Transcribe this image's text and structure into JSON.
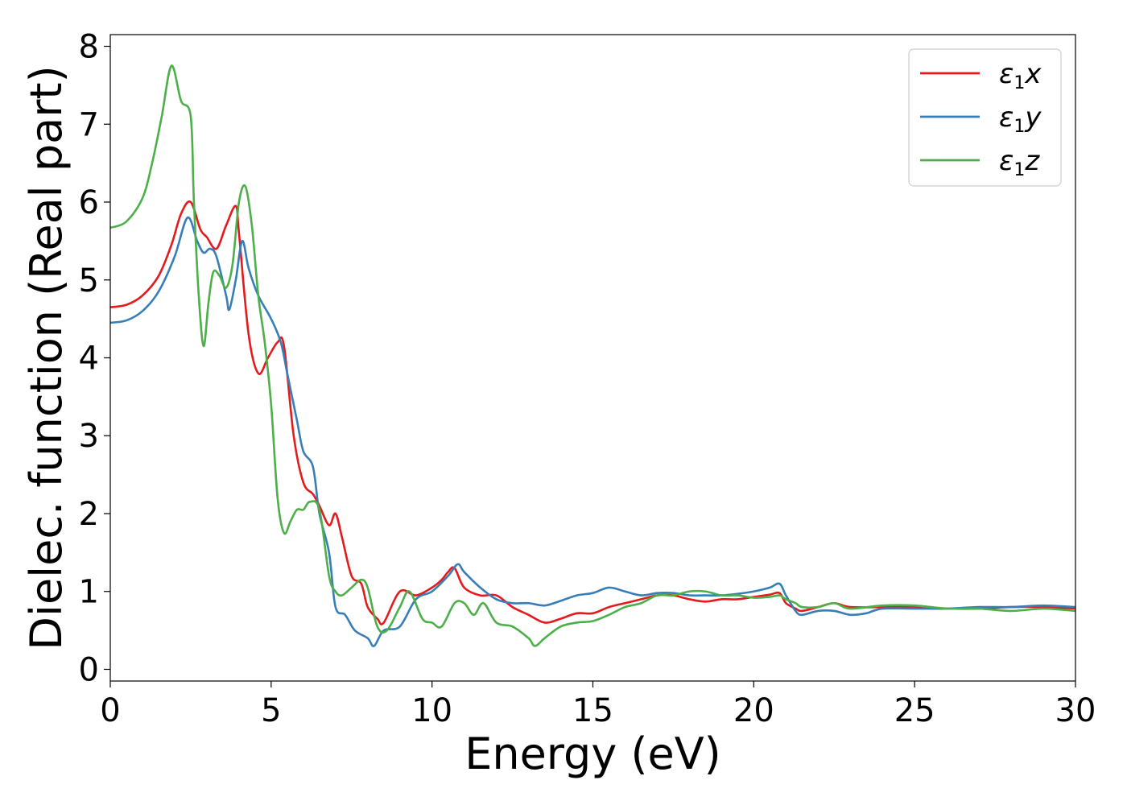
{
  "chart_data": {
    "type": "line",
    "title": "",
    "xlabel": "Energy (eV)",
    "ylabel": "Dielec. function (Real part)",
    "xlim": [
      0,
      30
    ],
    "ylim": [
      -0.15,
      8.15
    ],
    "xticks": [
      "0",
      "5",
      "10",
      "15",
      "20",
      "25",
      "30"
    ],
    "yticks": [
      "0",
      "1",
      "2",
      "3",
      "4",
      "5",
      "6",
      "7",
      "8"
    ],
    "grid": false,
    "legend_position": "top-right",
    "series": [
      {
        "name": "ε1x",
        "legend": {
          "base": "ε",
          "sub": "1",
          "suffix": "x"
        },
        "color": "#e41a1c",
        "x": [
          0,
          0.5,
          1.0,
          1.5,
          1.9,
          2.2,
          2.5,
          2.8,
          3.0,
          3.3,
          3.6,
          3.9,
          4.0,
          4.3,
          4.6,
          4.9,
          5.2,
          5.4,
          5.7,
          6.0,
          6.3,
          6.5,
          6.8,
          7.0,
          7.2,
          7.5,
          7.8,
          8.0,
          8.3,
          8.5,
          9.0,
          9.5,
          10.0,
          10.3,
          10.5,
          10.7,
          11.0,
          11.5,
          12.0,
          12.5,
          13.0,
          13.5,
          14.0,
          14.5,
          15.0,
          15.5,
          16.0,
          16.5,
          17.0,
          17.5,
          18.0,
          18.5,
          19.0,
          19.5,
          20.0,
          20.5,
          20.8,
          21.0,
          21.3,
          21.5,
          22.0,
          22.5,
          23.0,
          24.0,
          25.0,
          26.0,
          27.0,
          28.0,
          29.0,
          30.0
        ],
        "y": [
          4.65,
          4.68,
          4.8,
          5.05,
          5.45,
          5.85,
          6.0,
          5.65,
          5.55,
          5.4,
          5.7,
          5.95,
          5.6,
          4.3,
          3.8,
          4.0,
          4.2,
          4.15,
          3.0,
          2.4,
          2.25,
          2.1,
          1.85,
          2.0,
          1.7,
          1.2,
          1.1,
          0.8,
          0.65,
          0.6,
          1.0,
          0.95,
          1.05,
          1.15,
          1.25,
          1.3,
          1.05,
          0.95,
          0.95,
          0.8,
          0.7,
          0.6,
          0.65,
          0.72,
          0.72,
          0.8,
          0.85,
          0.9,
          0.95,
          0.95,
          0.9,
          0.87,
          0.9,
          0.9,
          0.93,
          0.96,
          0.98,
          0.85,
          0.78,
          0.75,
          0.8,
          0.85,
          0.8,
          0.8,
          0.8,
          0.78,
          0.78,
          0.8,
          0.8,
          0.78
        ]
      },
      {
        "name": "ε1y",
        "legend": {
          "base": "ε",
          "sub": "1",
          "suffix": "y"
        },
        "color": "#377eb8",
        "x": [
          0,
          0.5,
          1.0,
          1.5,
          2.0,
          2.4,
          2.7,
          2.9,
          3.1,
          3.3,
          3.6,
          3.7,
          3.9,
          4.1,
          4.3,
          4.6,
          5.0,
          5.3,
          5.5,
          5.8,
          6.0,
          6.3,
          6.5,
          6.8,
          7.0,
          7.3,
          7.6,
          8.0,
          8.2,
          8.5,
          9.0,
          9.5,
          10.0,
          10.5,
          10.8,
          11.0,
          11.5,
          12.0,
          12.5,
          13.0,
          13.5,
          14.0,
          14.5,
          15.0,
          15.5,
          16.0,
          16.5,
          17.0,
          17.5,
          18.0,
          18.5,
          19.0,
          19.5,
          20.0,
          20.5,
          20.8,
          21.0,
          21.3,
          21.5,
          22.0,
          22.5,
          23.0,
          23.5,
          24.0,
          25.0,
          26.0,
          27.0,
          28.0,
          29.0,
          30.0
        ],
        "y": [
          4.45,
          4.48,
          4.6,
          4.85,
          5.3,
          5.8,
          5.5,
          5.35,
          5.4,
          5.3,
          4.8,
          4.62,
          5.0,
          5.5,
          5.15,
          4.8,
          4.5,
          4.2,
          3.8,
          3.2,
          2.8,
          2.6,
          2.0,
          1.5,
          0.8,
          0.7,
          0.5,
          0.4,
          0.3,
          0.5,
          0.55,
          0.9,
          1.0,
          1.2,
          1.35,
          1.25,
          1.05,
          0.9,
          0.85,
          0.85,
          0.82,
          0.88,
          0.95,
          0.98,
          1.05,
          1.0,
          0.95,
          0.98,
          0.98,
          0.95,
          0.95,
          0.95,
          0.97,
          1.0,
          1.05,
          1.1,
          0.95,
          0.75,
          0.7,
          0.75,
          0.75,
          0.7,
          0.72,
          0.78,
          0.78,
          0.78,
          0.8,
          0.8,
          0.82,
          0.8
        ]
      },
      {
        "name": "ε1z",
        "legend": {
          "base": "ε",
          "sub": "1",
          "suffix": "z"
        },
        "color": "#4daf4a",
        "x": [
          0,
          0.5,
          1.0,
          1.3,
          1.6,
          1.9,
          2.2,
          2.5,
          2.6,
          2.75,
          2.9,
          3.05,
          3.2,
          3.4,
          3.6,
          3.8,
          4.0,
          4.2,
          4.4,
          4.6,
          4.8,
          5.0,
          5.2,
          5.4,
          5.6,
          5.8,
          6.0,
          6.2,
          6.5,
          6.8,
          7.0,
          7.2,
          7.5,
          7.8,
          8.0,
          8.3,
          8.6,
          9.0,
          9.3,
          9.7,
          10.0,
          10.3,
          10.7,
          11.0,
          11.3,
          11.6,
          12.0,
          12.5,
          13.0,
          13.2,
          13.5,
          14.0,
          14.5,
          15.0,
          15.5,
          16.0,
          16.5,
          17.0,
          17.5,
          18.0,
          18.5,
          19.0,
          19.5,
          20.0,
          20.5,
          20.8,
          21.0,
          21.3,
          21.5,
          22.0,
          22.5,
          23.0,
          24.0,
          25.0,
          26.0,
          27.0,
          28.0,
          29.0,
          30.0
        ],
        "y": [
          5.67,
          5.75,
          6.05,
          6.5,
          7.1,
          7.75,
          7.3,
          7.1,
          6.0,
          4.8,
          4.15,
          4.7,
          5.1,
          5.05,
          4.9,
          5.2,
          6.0,
          6.2,
          5.7,
          4.8,
          4.2,
          3.4,
          2.2,
          1.75,
          1.9,
          2.05,
          2.05,
          2.15,
          2.05,
          1.2,
          1.0,
          0.95,
          1.05,
          1.15,
          1.05,
          0.55,
          0.5,
          0.8,
          1.0,
          0.65,
          0.6,
          0.55,
          0.85,
          0.85,
          0.7,
          0.85,
          0.6,
          0.55,
          0.4,
          0.3,
          0.4,
          0.55,
          0.6,
          0.62,
          0.7,
          0.8,
          0.85,
          0.95,
          0.95,
          1.0,
          1.0,
          0.95,
          0.95,
          0.92,
          0.93,
          0.95,
          0.9,
          0.85,
          0.8,
          0.8,
          0.85,
          0.78,
          0.82,
          0.82,
          0.78,
          0.78,
          0.75,
          0.78,
          0.75
        ]
      }
    ]
  }
}
